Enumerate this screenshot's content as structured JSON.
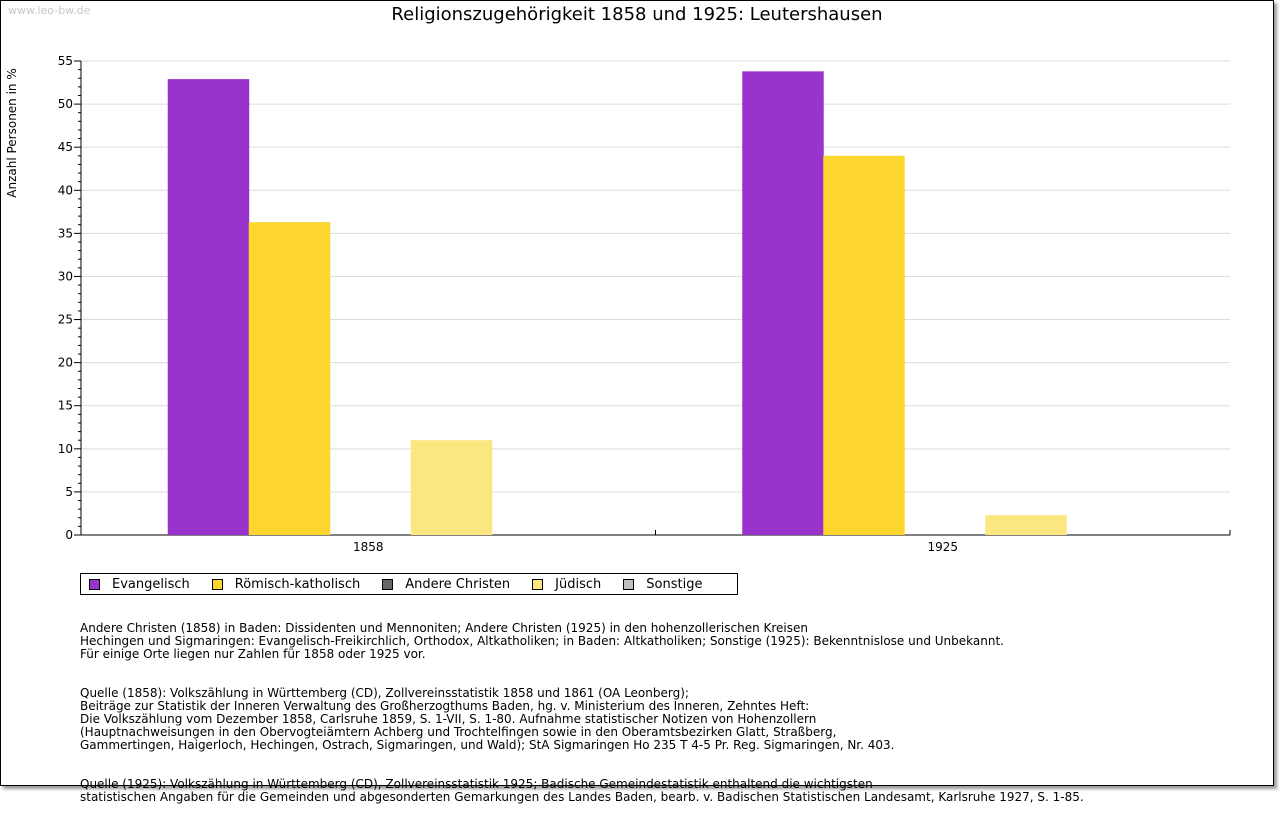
{
  "watermark": "www.leo-bw.de",
  "chart_data": {
    "type": "bar",
    "title": "Religionszugehörigkeit 1858 und 1925: Leutershausen",
    "xlabel": "",
    "ylabel": "Anzahl Personen in %",
    "ylim": [
      0,
      55
    ],
    "yticks": [
      0,
      5,
      10,
      15,
      20,
      25,
      30,
      35,
      40,
      45,
      50,
      55
    ],
    "grid": true,
    "legend_position": "bottom-left",
    "categories": [
      "1858",
      "1925"
    ],
    "series": [
      {
        "name": "Evangelisch",
        "color": "#9933cc",
        "values": [
          52.9,
          53.8
        ]
      },
      {
        "name": "Römisch-katholisch",
        "color": "#fdd52f",
        "values": [
          36.3,
          44.0
        ]
      },
      {
        "name": "Andere Christen",
        "color": "#666666",
        "values": [
          0,
          0
        ]
      },
      {
        "name": "Jüdisch",
        "color": "#fce680",
        "values": [
          11.0,
          2.3
        ]
      },
      {
        "name": "Sonstige",
        "color": "#c0c0c0",
        "values": [
          0,
          0
        ]
      }
    ]
  },
  "notes": [
    "Andere Christen (1858) in Baden: Dissidenten und Mennoniten; Andere Christen (1925) in den hohenzollerischen Kreisen\nHechingen und Sigmaringen: Evangelisch-Freikirchlich, Orthodox, Altkatholiken; in Baden: Altkatholiken; Sonstige (1925): Bekenntnislose und Unbekannt.\nFür einige Orte liegen nur Zahlen für 1858 oder 1925 vor.",
    "Quelle (1858): Volkszählung in Württemberg (CD), Zollvereinsstatistik 1858 und 1861 (OA Leonberg);\nBeiträge zur Statistik der Inneren Verwaltung des Großherzogthums Baden, hg. v. Ministerium des Inneren, Zehntes Heft:\nDie Volkszählung vom Dezember 1858, Carlsruhe 1859, S. 1-VII, S. 1-80. Aufnahme statistischer Notizen von Hohenzollern\n(Hauptnachweisungen in den Obervogteiämtern Achberg und Trochtelfingen sowie in den Oberamtsbezirken Glatt, Straßberg,\nGammertingen, Haigerloch, Hechingen, Ostrach, Sigmaringen, und Wald); StA Sigmaringen Ho 235 T 4-5 Pr. Reg. Sigmaringen, Nr. 403.",
    "Quelle (1925): Volkszählung in Württemberg (CD), Zollvereinsstatistik 1925; Badische Gemeindestatistik enthaltend die wichtigsten\nstatistischen Angaben für die Gemeinden und abgesonderten Gemarkungen des Landes Baden, bearb. v. Badischen Statistischen Landesamt, Karlsruhe 1927, S. 1-85."
  ]
}
